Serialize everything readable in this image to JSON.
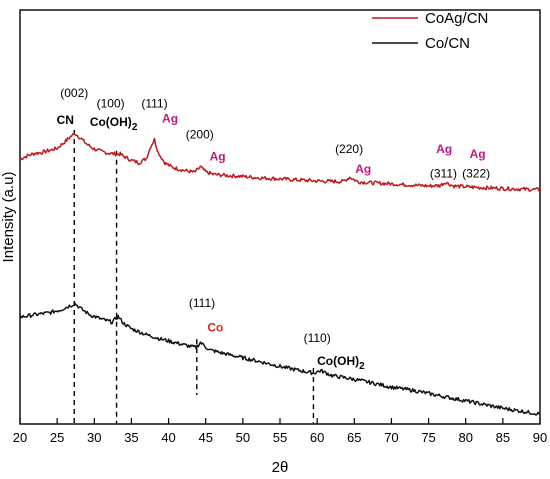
{
  "chart_data": {
    "type": "line",
    "xlabel": "2θ",
    "ylabel": "Intensity (a.u)",
    "xlim": [
      20,
      90
    ],
    "xticks": [
      "20",
      "25",
      "30",
      "35",
      "40",
      "45",
      "50",
      "55",
      "60",
      "65",
      "70",
      "75",
      "80",
      "85",
      "90"
    ],
    "y_ticks_shown": false,
    "grid": false,
    "legend_position": "top-right",
    "series": [
      {
        "name": "CoAg/CN",
        "color": "#c0171c",
        "x": [
          20,
          21,
          22,
          23,
          24,
          25,
          26,
          26.8,
          27.4,
          28,
          29,
          30,
          31,
          32,
          33,
          33.5,
          34,
          35,
          36,
          37,
          37.6,
          38.1,
          38.6,
          39.5,
          40.5,
          42,
          43.5,
          44.3,
          45,
          46,
          48,
          50,
          52,
          55,
          58,
          60,
          62,
          63.5,
          64.4,
          65.5,
          67,
          70,
          73,
          75,
          76.5,
          77.3,
          78.3,
          80,
          82,
          85,
          88,
          90
        ],
        "y": [
          0.64,
          0.648,
          0.654,
          0.656,
          0.661,
          0.666,
          0.681,
          0.694,
          0.702,
          0.693,
          0.676,
          0.664,
          0.658,
          0.654,
          0.652,
          0.652,
          0.646,
          0.637,
          0.631,
          0.641,
          0.671,
          0.687,
          0.656,
          0.631,
          0.62,
          0.613,
          0.608,
          0.621,
          0.609,
          0.603,
          0.6,
          0.598,
          0.595,
          0.592,
          0.589,
          0.587,
          0.586,
          0.586,
          0.596,
          0.585,
          0.583,
          0.58,
          0.577,
          0.575,
          0.576,
          0.584,
          0.575,
          0.573,
          0.571,
          0.569,
          0.567,
          0.566
        ]
      },
      {
        "name": "Co/CN",
        "color": "#111111",
        "x": [
          20,
          22,
          24,
          25.5,
          26.5,
          27.4,
          28.3,
          29.5,
          31,
          32.4,
          33.2,
          33.9,
          35,
          37,
          39,
          41,
          43,
          43.7,
          44.3,
          45.5,
          48,
          50,
          52,
          55,
          58,
          59.5,
          60.5,
          62,
          65,
          68,
          70,
          73,
          76,
          80,
          85,
          90
        ],
        "y": [
          0.258,
          0.264,
          0.269,
          0.276,
          0.284,
          0.291,
          0.277,
          0.263,
          0.253,
          0.246,
          0.26,
          0.244,
          0.23,
          0.216,
          0.205,
          0.196,
          0.187,
          0.185,
          0.197,
          0.179,
          0.168,
          0.16,
          0.152,
          0.139,
          0.128,
          0.123,
          0.129,
          0.117,
          0.108,
          0.097,
          0.089,
          0.081,
          0.07,
          0.056,
          0.038,
          0.024
        ]
      }
    ],
    "reference_lines": [
      {
        "x": 27.3,
        "y_top": 0.71
      },
      {
        "x": 33.0,
        "y_top": 0.66
      },
      {
        "x": 43.8,
        "y_top": 0.205,
        "y_bottom": 0.07
      },
      {
        "x": 59.5,
        "y_top": 0.135
      }
    ],
    "annotations": [
      {
        "text": "(002)",
        "x": 27.3,
        "y": 0.79,
        "style": "hkl"
      },
      {
        "text": "CN",
        "x": 26.1,
        "y": 0.725,
        "style": "dark"
      },
      {
        "text": "(100)",
        "x": 32.2,
        "y": 0.765,
        "style": "hkl"
      },
      {
        "text": "Co(OH)",
        "x": 32.6,
        "y": 0.72,
        "style": "dark",
        "subscript": "2"
      },
      {
        "text": "(111)",
        "x": 38.1,
        "y": 0.765,
        "style": "hkl"
      },
      {
        "text": "Ag",
        "x": 40.2,
        "y": 0.728,
        "style": "ag"
      },
      {
        "text": "(200)",
        "x": 44.2,
        "y": 0.69,
        "style": "hkl"
      },
      {
        "text": "Ag",
        "x": 46.6,
        "y": 0.636,
        "style": "ag"
      },
      {
        "text": "(220)",
        "x": 64.3,
        "y": 0.655,
        "style": "hkl"
      },
      {
        "text": "Ag",
        "x": 66.2,
        "y": 0.606,
        "style": "ag"
      },
      {
        "text": "Ag",
        "x": 77.1,
        "y": 0.655,
        "style": "ag"
      },
      {
        "text": "(311)",
        "x": 77.0,
        "y": 0.596,
        "style": "hkl"
      },
      {
        "text": "Ag",
        "x": 81.6,
        "y": 0.642,
        "style": "ag"
      },
      {
        "text": "(322)",
        "x": 81.4,
        "y": 0.596,
        "style": "hkl"
      },
      {
        "text": "(111)",
        "x": 44.5,
        "y": 0.283,
        "style": "hkl"
      },
      {
        "text": "Co",
        "x": 46.3,
        "y": 0.223,
        "style": "co-red"
      },
      {
        "text": "(110)",
        "x": 60.0,
        "y": 0.198,
        "style": "hkl"
      },
      {
        "text": "Co(OH)",
        "x": 63.2,
        "y": 0.143,
        "style": "dark",
        "subscript": "2"
      }
    ]
  }
}
